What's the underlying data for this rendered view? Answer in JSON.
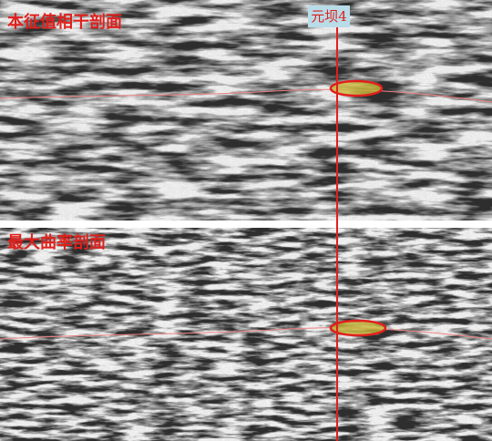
{
  "panels": [
    {
      "title": "本征值相干剖面"
    },
    {
      "title": "最大曲率剖面"
    }
  ],
  "well": {
    "label": "元坝4"
  }
}
